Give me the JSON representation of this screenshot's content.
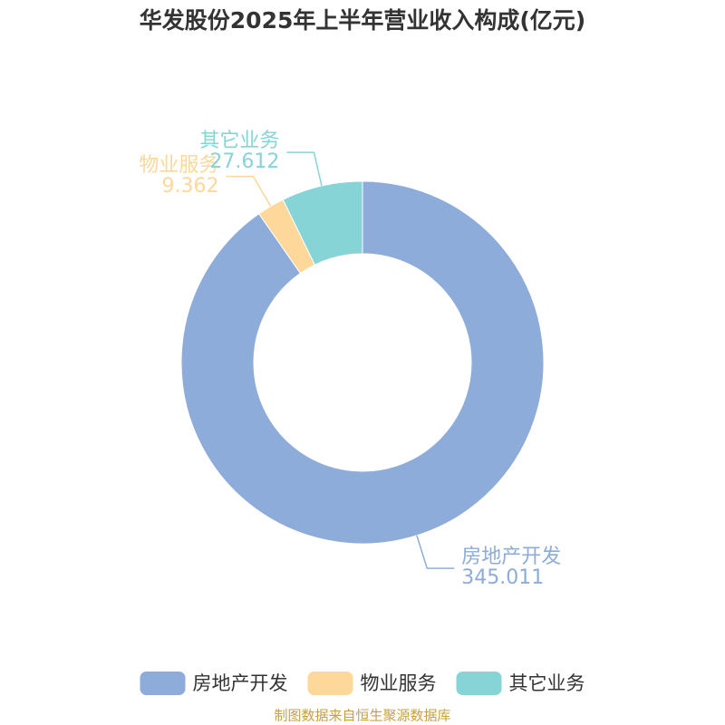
{
  "chart_data": {
    "type": "donut",
    "title": "华发股份2025年上半年营业收入构成(亿元)",
    "categories": [
      "房地产开发",
      "物业服务",
      "其它业务"
    ],
    "values": [
      345.011,
      9.362,
      27.612
    ],
    "colors": [
      "#8eacd9",
      "#fdd89a",
      "#87d4d6"
    ],
    "legend": "bottom",
    "source": "制图数据来自恒生聚源数据库"
  }
}
